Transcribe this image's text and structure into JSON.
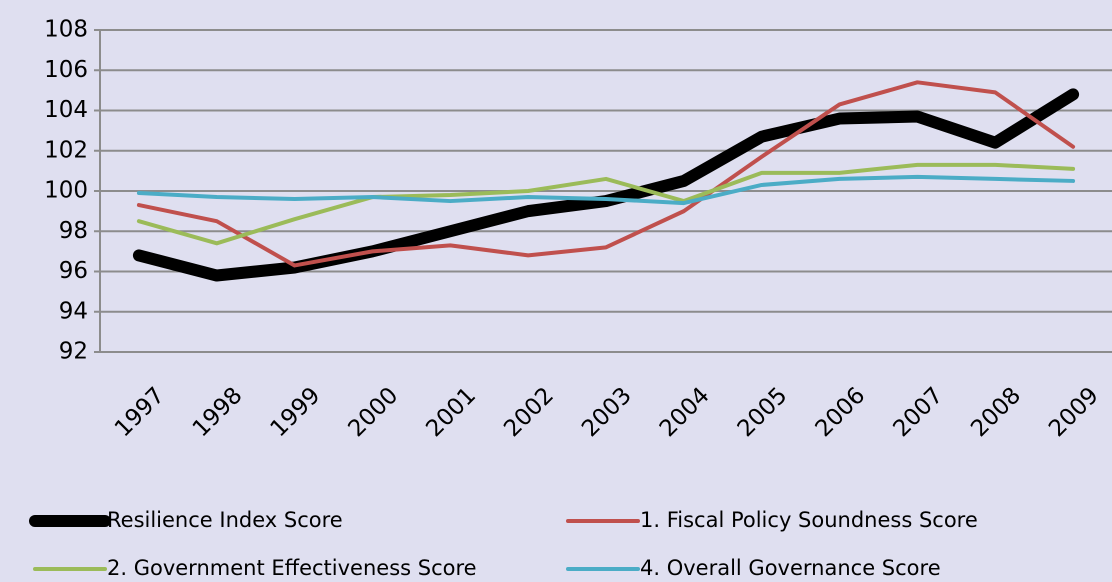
{
  "chart_data": {
    "type": "line",
    "categories": [
      "1997",
      "1998",
      "1999",
      "2000",
      "2001",
      "2002",
      "2003",
      "2004",
      "2005",
      "2006",
      "2007",
      "2008",
      "2009"
    ],
    "series": [
      {
        "name": "Resilience Index Score",
        "color": "#000000",
        "values": [
          96.8,
          95.8,
          96.2,
          97.0,
          98.0,
          99.0,
          99.5,
          100.5,
          102.7,
          103.6,
          103.7,
          102.4,
          104.8
        ]
      },
      {
        "name": "1. Fiscal Policy Soundness Score",
        "color": "#c0504d",
        "values": [
          99.3,
          98.5,
          96.3,
          97.0,
          97.3,
          96.8,
          97.2,
          99.0,
          101.7,
          104.3,
          105.4,
          104.9,
          102.2
        ]
      },
      {
        "name": "2. Government Effectiveness Score",
        "color": "#9bbb59",
        "values": [
          98.5,
          97.4,
          98.6,
          99.7,
          99.8,
          100.0,
          100.6,
          99.5,
          100.9,
          100.9,
          101.3,
          101.3,
          101.1
        ]
      },
      {
        "name": "4. Overall Governance Score",
        "color": "#4bacc6",
        "values": [
          99.9,
          99.7,
          99.6,
          99.7,
          99.5,
          99.7,
          99.6,
          99.4,
          100.3,
          100.6,
          100.7,
          100.6,
          100.5
        ]
      }
    ],
    "ylim": [
      92,
      108
    ],
    "yticks": [
      92,
      94,
      96,
      98,
      100,
      102,
      104,
      106,
      108
    ],
    "grid": true,
    "legend": "bottom"
  }
}
